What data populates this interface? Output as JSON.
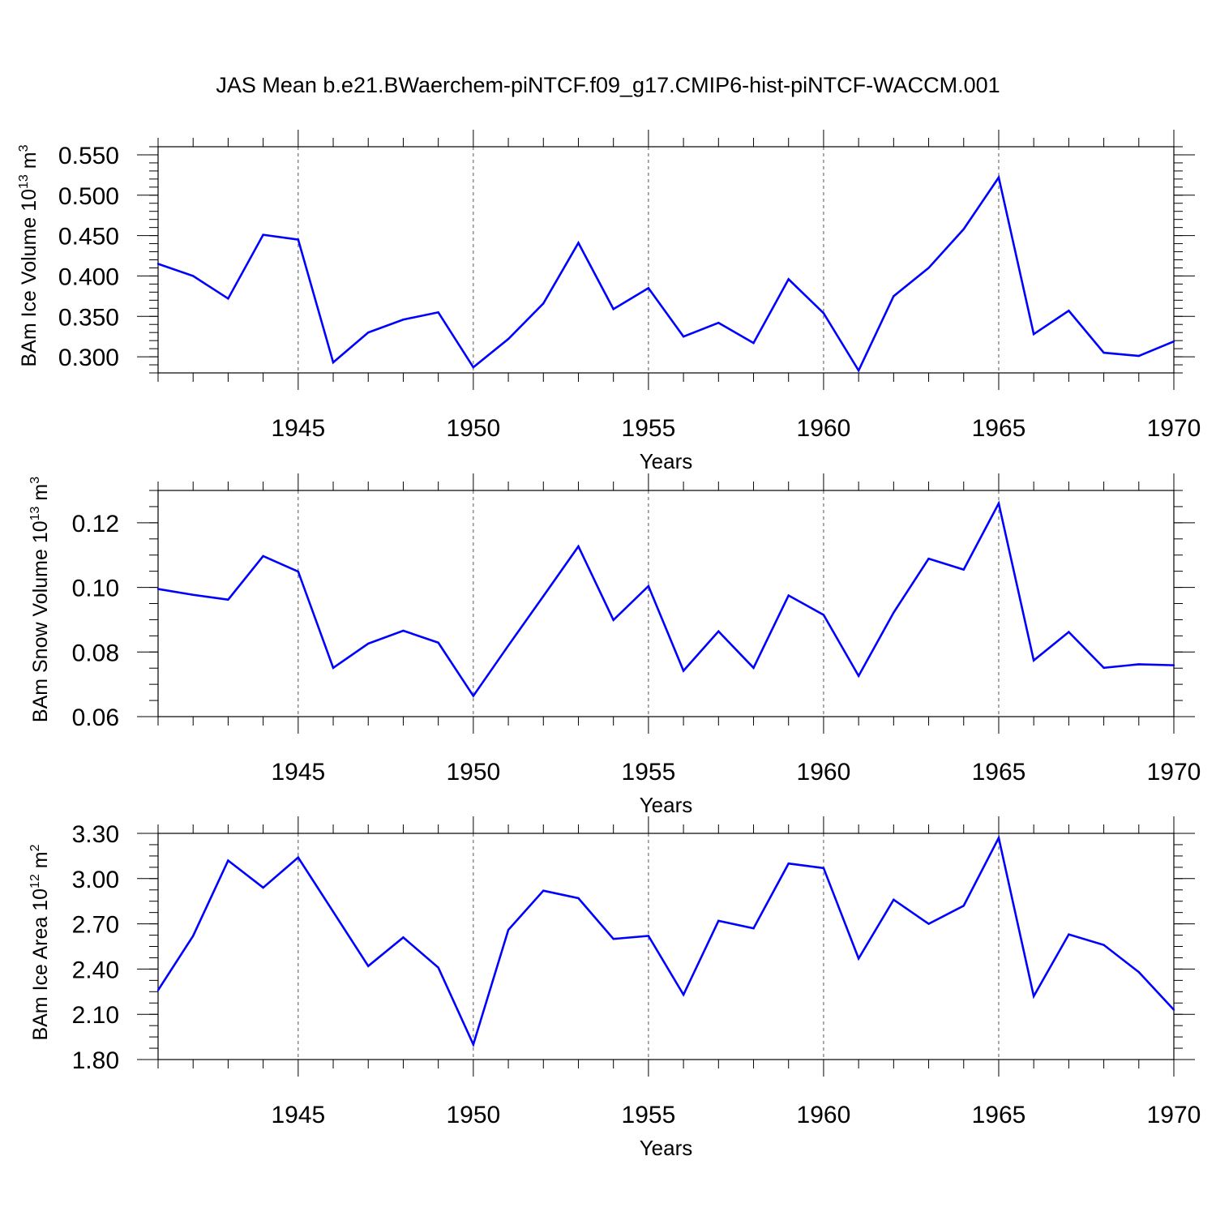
{
  "title": "JAS Mean b.e21.BWaerchem-piNTCF.f09_g17.CMIP6-hist-piNTCF-WACCM.001",
  "chart_data": [
    {
      "type": "line",
      "title": "JAS Mean b.e21.BWaerchem-piNTCF.f09_g17.CMIP6-hist-piNTCF-WACCM.001",
      "xlabel": "Years",
      "ylabel": "BAm Ice Volume 10",
      "ylabel_exp": "13",
      "ylabel_unit": " m",
      "ylabel_unit_exp": "3",
      "xlim": [
        1941,
        1970
      ],
      "ylim": [
        0.28,
        0.56
      ],
      "x_ticks": [
        1945,
        1950,
        1955,
        1960,
        1965,
        1970
      ],
      "x_tick_labels": [
        "1945",
        "1950",
        "1955",
        "1960",
        "1965",
        "1970"
      ],
      "y_ticks": [
        0.3,
        0.35,
        0.4,
        0.45,
        0.5,
        0.55
      ],
      "y_tick_labels": [
        "0.300",
        "0.350",
        "0.400",
        "0.450",
        "0.500",
        "0.550"
      ],
      "y_minor_step": 0.01,
      "line_color": "#0000ff",
      "series": [
        {
          "name": "BAm Ice Volume",
          "x": [
            1941,
            1942,
            1943,
            1944,
            1945,
            1946,
            1947,
            1948,
            1949,
            1950,
            1951,
            1952,
            1953,
            1954,
            1955,
            1956,
            1957,
            1958,
            1959,
            1960,
            1961,
            1962,
            1963,
            1964,
            1965,
            1966,
            1967,
            1968,
            1969,
            1970
          ],
          "values": [
            0.415,
            0.4,
            0.372,
            0.451,
            0.445,
            0.293,
            0.33,
            0.346,
            0.355,
            0.287,
            0.322,
            0.366,
            0.441,
            0.359,
            0.385,
            0.325,
            0.342,
            0.317,
            0.396,
            0.354,
            0.283,
            0.375,
            0.41,
            0.458,
            0.522,
            0.328,
            0.357,
            0.305,
            0.301,
            0.319
          ]
        }
      ]
    },
    {
      "type": "line",
      "xlabel": "Years",
      "ylabel": "BAm Snow Volume 10",
      "ylabel_exp": "13",
      "ylabel_unit": " m",
      "ylabel_unit_exp": "3",
      "xlim": [
        1941,
        1970
      ],
      "ylim": [
        0.06,
        0.13
      ],
      "x_ticks": [
        1945,
        1950,
        1955,
        1960,
        1965,
        1970
      ],
      "x_tick_labels": [
        "1945",
        "1950",
        "1955",
        "1960",
        "1965",
        "1970"
      ],
      "y_ticks": [
        0.06,
        0.08,
        0.1,
        0.12
      ],
      "y_tick_labels": [
        "0.06",
        "0.08",
        "0.10",
        "0.12"
      ],
      "y_minor_step": 0.005,
      "line_color": "#0000ff",
      "series": [
        {
          "name": "BAm Snow Volume",
          "x": [
            1941,
            1942,
            1943,
            1944,
            1945,
            1946,
            1947,
            1948,
            1949,
            1950,
            1951,
            1952,
            1953,
            1954,
            1955,
            1956,
            1957,
            1958,
            1959,
            1960,
            1961,
            1962,
            1963,
            1964,
            1965,
            1966,
            1967,
            1968,
            1969,
            1970
          ],
          "values": [
            0.0995,
            0.0977,
            0.0962,
            0.1097,
            0.1049,
            0.0751,
            0.0826,
            0.0866,
            0.0829,
            0.0664,
            0.082,
            0.0973,
            0.1127,
            0.0899,
            0.1004,
            0.0742,
            0.0864,
            0.0751,
            0.0975,
            0.0915,
            0.0726,
            0.0922,
            0.1089,
            0.1055,
            0.126,
            0.0774,
            0.0862,
            0.0751,
            0.0762,
            0.0759
          ]
        }
      ]
    },
    {
      "type": "line",
      "xlabel": "Years",
      "ylabel": "BAm Ice Area 10",
      "ylabel_exp": "12",
      "ylabel_unit": " m",
      "ylabel_unit_exp": "2",
      "xlim": [
        1941,
        1970
      ],
      "ylim": [
        1.8,
        3.3
      ],
      "x_ticks": [
        1945,
        1950,
        1955,
        1960,
        1965,
        1970
      ],
      "x_tick_labels": [
        "1945",
        "1950",
        "1955",
        "1960",
        "1965",
        "1970"
      ],
      "y_ticks": [
        1.8,
        2.1,
        2.4,
        2.7,
        3.0,
        3.3
      ],
      "y_tick_labels": [
        "1.80",
        "2.10",
        "2.40",
        "2.70",
        "3.00",
        "3.30"
      ],
      "y_minor_step": 0.075,
      "line_color": "#0000ff",
      "series": [
        {
          "name": "BAm Ice Area",
          "x": [
            1941,
            1942,
            1943,
            1944,
            1945,
            1946,
            1947,
            1948,
            1949,
            1950,
            1951,
            1952,
            1953,
            1954,
            1955,
            1956,
            1957,
            1958,
            1959,
            1960,
            1961,
            1962,
            1963,
            1964,
            1965,
            1966,
            1967,
            1968,
            1969,
            1970
          ],
          "values": [
            2.26,
            2.62,
            3.12,
            2.94,
            3.14,
            2.78,
            2.42,
            2.61,
            2.41,
            1.9,
            2.66,
            2.92,
            2.87,
            2.6,
            2.62,
            2.23,
            2.72,
            2.67,
            3.1,
            3.07,
            2.47,
            2.86,
            2.7,
            2.82,
            3.27,
            2.22,
            2.63,
            2.56,
            2.38,
            2.13
          ]
        }
      ]
    }
  ]
}
